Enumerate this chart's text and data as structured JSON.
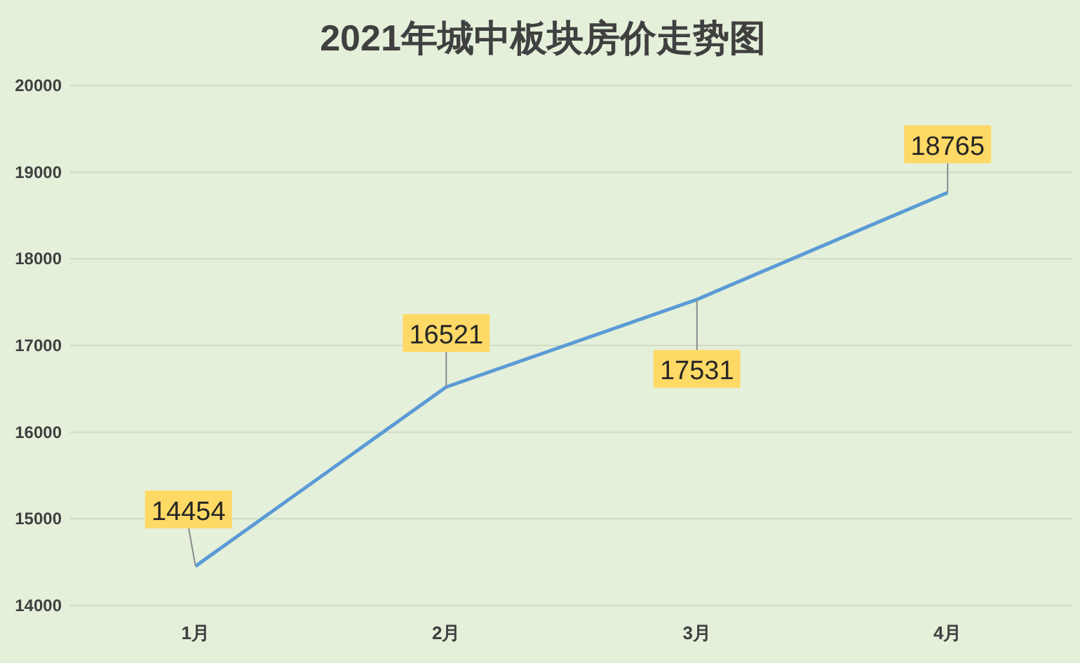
{
  "chart_data": {
    "type": "line",
    "title": "2021年城中板块房价走势图",
    "categories": [
      "1月",
      "2月",
      "3月",
      "4月"
    ],
    "series": [
      {
        "color": "#5b9bd5",
        "values": [
          14454,
          16521,
          17531,
          18765
        ]
      }
    ],
    "ylim": [
      14000,
      20000
    ],
    "yticks": [
      14000,
      15000,
      16000,
      17000,
      18000,
      19000,
      20000
    ],
    "grid": "y",
    "data_labels": true,
    "marker": "none",
    "line_style": "solid"
  }
}
